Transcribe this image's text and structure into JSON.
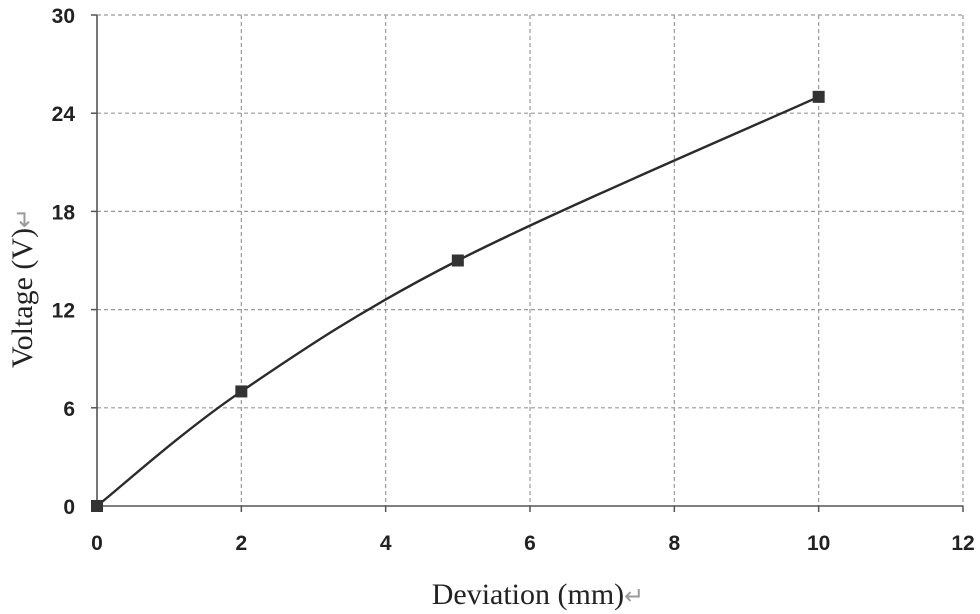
{
  "chart_data": {
    "type": "line",
    "xlabel": "Deviation (mm)",
    "ylabel": "Voltage (V)",
    "label_suffix": "↵",
    "xlim": [
      0,
      12
    ],
    "ylim": [
      0,
      30
    ],
    "x_ticks": [
      "0",
      "2",
      "4",
      "6",
      "8",
      "10",
      "12"
    ],
    "y_ticks": [
      "0",
      "6",
      "12",
      "18",
      "24",
      "30"
    ],
    "grid": true,
    "grid_style": "dashed",
    "marker": "square",
    "series": [
      {
        "x": [
          0,
          2,
          5,
          10
        ],
        "y": [
          0,
          7,
          15,
          25
        ]
      }
    ],
    "colors": {
      "line": "#2b2b2b",
      "marker": "#333333",
      "grid": "#9a9a9a",
      "axis": "#555555"
    }
  }
}
